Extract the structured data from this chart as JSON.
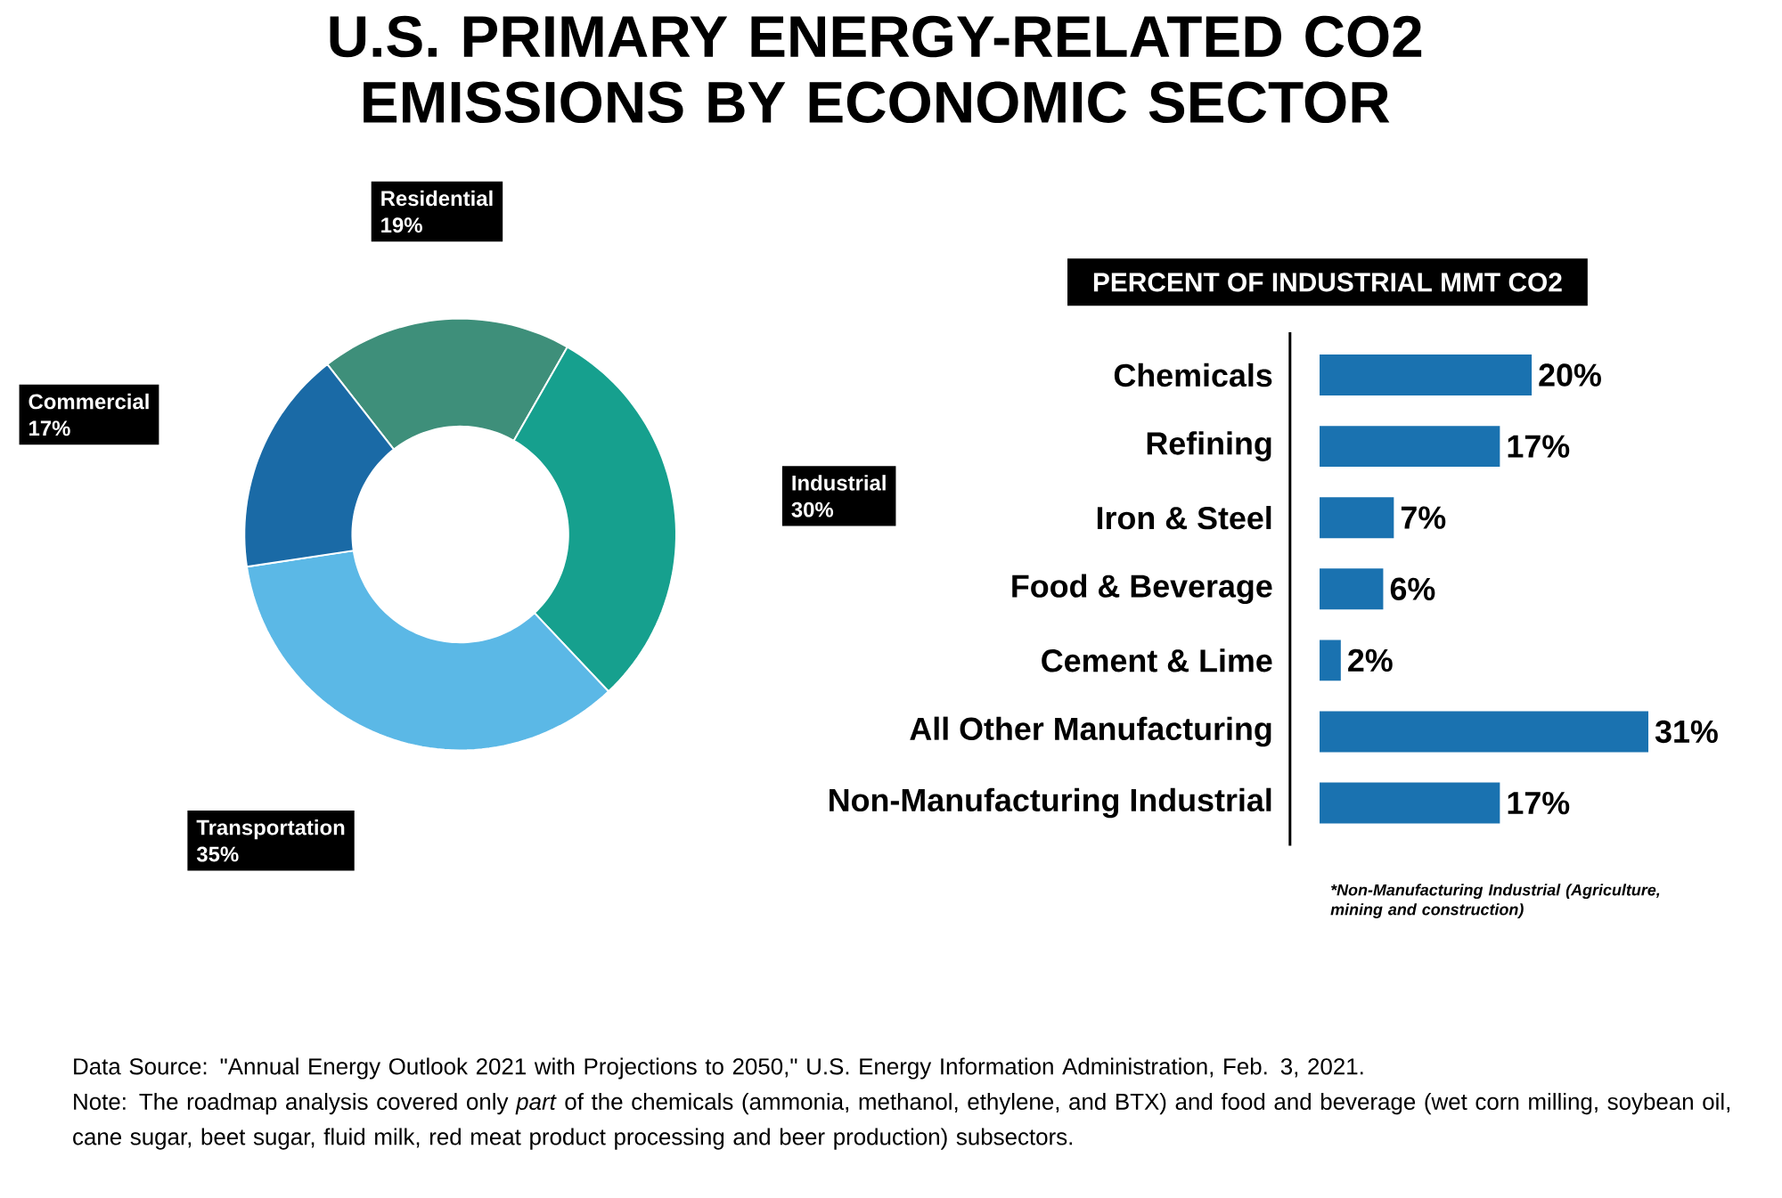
{
  "chart_data": [
    {
      "type": "donut",
      "title": "U.S. PRIMARY ENERGY-RELATED CO2 EMISSIONS BY ECONOMIC SECTOR",
      "categories": [
        "Residential",
        "Industrial",
        "Transportation",
        "Commercial"
      ],
      "values": [
        19,
        30,
        35,
        17
      ],
      "value_labels": [
        "19%",
        "30%",
        "35%",
        "17%"
      ],
      "colors": [
        "#3e8f7a",
        "#16a08e",
        "#5bb8e6",
        "#1a6aa6"
      ],
      "annotations": [
        "Data Source: \"Annual Energy Outlook 2021 with Projections to 2050,\" U.S. Energy Information Administration, Feb. 3, 2021.",
        "Note: The roadmap analysis covered only *part* of the chemicals (ammonia, methanol, ethylene, and BTX) and food and beverage (wet corn milling, soybean oil, cane sugar, beet sugar, fluid milk, red meat product processing and beer production) subsectors."
      ]
    },
    {
      "type": "bar",
      "orientation": "horizontal",
      "title": "PERCENT OF INDUSTRIAL MMT CO2",
      "categories": [
        "Chemicals",
        "Refining",
        "Iron & Steel",
        "Food & Beverage",
        "Cement & Lime",
        "All Other Manufacturing",
        "Non-Manufacturing Industrial"
      ],
      "values": [
        20,
        17,
        7,
        6,
        2,
        31,
        17
      ],
      "value_labels": [
        "20%",
        "17%",
        "7%",
        "6%",
        "2%",
        "31%",
        "17%"
      ],
      "color": "#1a72b0",
      "annotations": [
        "*Non-Manufacturing Industrial (Agriculture, mining and construction)"
      ]
    }
  ]
}
